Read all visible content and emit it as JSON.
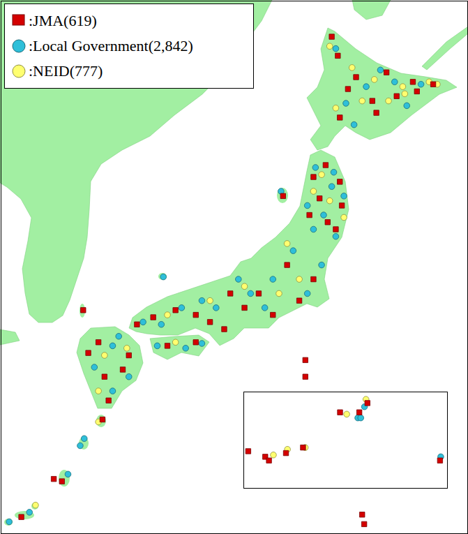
{
  "chart_data": [
    {
      "type": "scatter",
      "tick_labels": false,
      "legend": "top-left",
      "xlim": [
        123.5,
        146.5
      ],
      "ylim": [
        23.8,
        46.2
      ],
      "series": [
        {
          "name": ":JMA(619)",
          "color": "#d40000",
          "marker": "square",
          "x": [
            139.8,
            140.1,
            141.0,
            142.5,
            143.8,
            144.8,
            141.8,
            143.0,
            140.2,
            142.0,
            140.6,
            144.0,
            139.5,
            138.9,
            140.2,
            139.2,
            140.3,
            138.7,
            139.6,
            140.0,
            138.9,
            137.6,
            136.2,
            135.5,
            134.8,
            133.8,
            133.1,
            132.1,
            131.0,
            130.2,
            138.2,
            136.9,
            134.5,
            131.7,
            133.1,
            128.3,
            129.8,
            128.6,
            128.8,
            127.8,
            129.5,
            128.5,
            126.5,
            126.1,
            124.5,
            138.5,
            138.5,
            141.3,
            141.4,
            137.4,
            127.55
          ],
          "y": [
            44.7,
            43.9,
            43.0,
            43.2,
            42.8,
            42.7,
            42.0,
            42.2,
            41.3,
            41.5,
            42.5,
            42.4,
            39.3,
            38.8,
            38.6,
            37.9,
            37.6,
            37.2,
            36.9,
            36.6,
            34.5,
            35.1,
            33.9,
            33.3,
            33.9,
            32.7,
            33.0,
            33.2,
            32.9,
            32.6,
            33.6,
            33.0,
            32.4,
            31.7,
            31.85,
            31.85,
            31.3,
            30.4,
            29.4,
            31.4,
            30.7,
            28.6,
            26.0,
            26.1,
            24.5,
            31.1,
            30.4,
            24.6,
            24.2,
            38.0,
            33.2
          ]
        },
        {
          "name": ":Local Government(2,842)",
          "color": "#2ebfd9",
          "marker": "circle",
          "x": [
            140.0,
            141.5,
            142.9,
            143.5,
            140.5,
            144.2,
            142.2,
            140.9,
            139.0,
            139.8,
            140.4,
            138.6,
            139.4,
            140.0,
            138.9,
            139.9,
            139.3,
            137.9,
            136.9,
            136.5,
            135.2,
            134.1,
            132.4,
            131.4,
            133.4,
            138.6,
            135.8,
            130.5,
            131.5,
            131.2,
            132.6,
            133.4,
            129.0,
            128.1,
            129.8,
            129.0,
            129.3,
            127.6,
            127.4,
            126.8,
            124.9,
            123.9,
            137.3
          ],
          "y": [
            44.2,
            42.6,
            42.8,
            41.8,
            41.9,
            42.7,
            43.3,
            41.0,
            39.2,
            38.4,
            38.0,
            37.6,
            37.2,
            36.3,
            36.6,
            39.0,
            35.1,
            35.7,
            34.5,
            33.3,
            34.5,
            33.3,
            33.3,
            32.6,
            33.6,
            33.9,
            33.9,
            32.7,
            34.6,
            31.7,
            31.6,
            31.8,
            31.7,
            30.8,
            30.4,
            29.8,
            32.1,
            27.8,
            27.5,
            26.3,
            24.7,
            24.3,
            38.2
          ]
        },
        {
          "name": ":NEID(777)",
          "color": "#ffff70",
          "marker": "circle",
          "x": [
            139.7,
            140.8,
            141.3,
            142.6,
            143.3,
            144.6,
            145.0,
            140.0,
            141.9,
            143.4,
            139.3,
            139.7,
            138.9,
            140.4,
            138.2,
            137.2,
            135.5,
            133.8,
            131.7,
            137.6,
            132.1,
            128.6,
            129.7,
            128.3,
            128.3,
            125.2
          ],
          "y": [
            44.3,
            43.4,
            42.0,
            42.0,
            42.6,
            42.8,
            42.7,
            41.7,
            42.9,
            42.3,
            38.9,
            37.8,
            38.2,
            37.1,
            34.5,
            33.9,
            34.2,
            33.6,
            33.0,
            36.0,
            31.85,
            31.3,
            31.6,
            29.8,
            28.5,
            25.0
          ]
        }
      ]
    },
    {
      "type": "scatter",
      "tick_labels": false,
      "xlim": [
        129,
        156.5
      ],
      "ylim": [
        22.8,
        28.0
      ],
      "series": [
        {
          "color": "#d40000",
          "marker": "square",
          "x": [
            129.6,
            131.9,
            132.4,
            134.7,
            137.0,
            142.0,
            144.6,
            145.7,
            155.5
          ],
          "y": [
            24.8,
            24.5,
            24.3,
            24.7,
            25.0,
            26.9,
            26.9,
            27.4,
            24.3
          ]
        },
        {
          "color": "#2ebfd9",
          "marker": "circle",
          "x": [
            144.4,
            144.8,
            145.3,
            155.6
          ],
          "y": [
            26.6,
            26.6,
            27.2,
            24.5
          ]
        },
        {
          "color": "#ffff70",
          "marker": "circle",
          "x": [
            133.0,
            134.9,
            137.3,
            142.9,
            145.5
          ],
          "y": [
            24.6,
            24.9,
            25.0,
            26.8,
            27.6
          ]
        }
      ]
    }
  ]
}
